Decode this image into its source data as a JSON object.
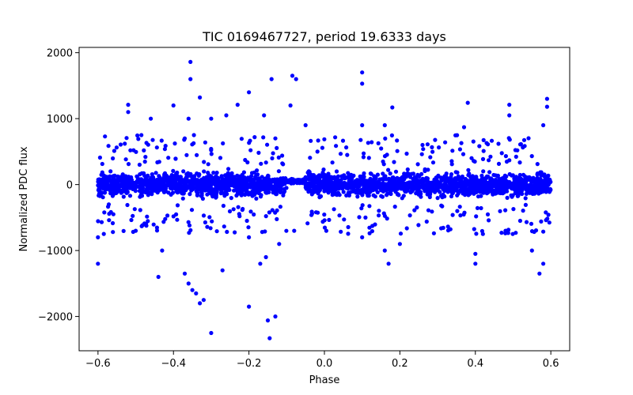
{
  "chart_data": {
    "type": "scatter",
    "title": "TIC 0169467727, period 19.6333 days",
    "xlabel": "Phase",
    "ylabel": "Normalized PDC flux",
    "xlim": [
      -0.65,
      0.65
    ],
    "ylim": [
      -2520,
      2080
    ],
    "xticks": [
      -0.6,
      -0.4,
      -0.2,
      0.0,
      0.2,
      0.4,
      0.6
    ],
    "xtick_labels": [
      "−0.6",
      "−0.4",
      "−0.2",
      "0.0",
      "0.2",
      "0.4",
      "0.6"
    ],
    "yticks": [
      -2000,
      -1000,
      0,
      1000,
      2000
    ],
    "ytick_labels": [
      "−2000",
      "−1000",
      "0",
      "1000",
      "2000"
    ],
    "grid": false,
    "marker_color": "#0000ff",
    "series": [
      {
        "name": "flux",
        "core_band": {
          "x_range": [
            -0.6,
            0.6
          ],
          "y_range": [
            -300,
            300
          ],
          "gap": [
            -0.1,
            -0.05
          ]
        },
        "outliers": [
          [
            -0.355,
            1860
          ],
          [
            -0.355,
            1600
          ],
          [
            -0.33,
            1320
          ],
          [
            -0.4,
            1200
          ],
          [
            -0.36,
            1000
          ],
          [
            -0.52,
            1210
          ],
          [
            -0.52,
            1100
          ],
          [
            -0.46,
            1000
          ],
          [
            -0.37,
            700
          ],
          [
            -0.3,
            1000
          ],
          [
            -0.23,
            1210
          ],
          [
            -0.26,
            1050
          ],
          [
            -0.2,
            1400
          ],
          [
            -0.16,
            1050
          ],
          [
            -0.14,
            1600
          ],
          [
            -0.13,
            700
          ],
          [
            -0.085,
            1650
          ],
          [
            -0.075,
            1600
          ],
          [
            -0.09,
            1200
          ],
          [
            -0.05,
            900
          ],
          [
            0.1,
            1700
          ],
          [
            0.1,
            1530
          ],
          [
            0.1,
            900
          ],
          [
            0.18,
            1170
          ],
          [
            0.16,
            900
          ],
          [
            0.26,
            600
          ],
          [
            0.32,
            640
          ],
          [
            0.37,
            870
          ],
          [
            0.38,
            1240
          ],
          [
            0.49,
            1210
          ],
          [
            0.49,
            1050
          ],
          [
            0.59,
            1300
          ],
          [
            0.59,
            1180
          ],
          [
            0.58,
            900
          ],
          [
            -0.6,
            -1200
          ],
          [
            -0.6,
            -800
          ],
          [
            -0.44,
            -1400
          ],
          [
            -0.43,
            -1000
          ],
          [
            -0.37,
            -1350
          ],
          [
            -0.36,
            -1500
          ],
          [
            -0.35,
            -1600
          ],
          [
            -0.34,
            -1650
          ],
          [
            -0.33,
            -1800
          ],
          [
            -0.32,
            -1750
          ],
          [
            -0.3,
            -2250
          ],
          [
            -0.27,
            -1300
          ],
          [
            -0.2,
            -1850
          ],
          [
            -0.2,
            -800
          ],
          [
            -0.17,
            -1200
          ],
          [
            -0.155,
            -1100
          ],
          [
            -0.15,
            -2060
          ],
          [
            -0.145,
            -2330
          ],
          [
            -0.13,
            -2000
          ],
          [
            -0.12,
            -900
          ],
          [
            -0.08,
            -700
          ],
          [
            0.005,
            -700
          ],
          [
            0.1,
            -800
          ],
          [
            0.16,
            -1000
          ],
          [
            0.17,
            -1200
          ],
          [
            0.2,
            -900
          ],
          [
            0.4,
            -1050
          ],
          [
            0.4,
            -1200
          ],
          [
            0.42,
            -750
          ],
          [
            0.55,
            -1000
          ],
          [
            0.57,
            -1350
          ],
          [
            0.58,
            -1200
          ],
          [
            -0.5,
            -700
          ],
          [
            0.48,
            -700
          ]
        ]
      }
    ]
  }
}
